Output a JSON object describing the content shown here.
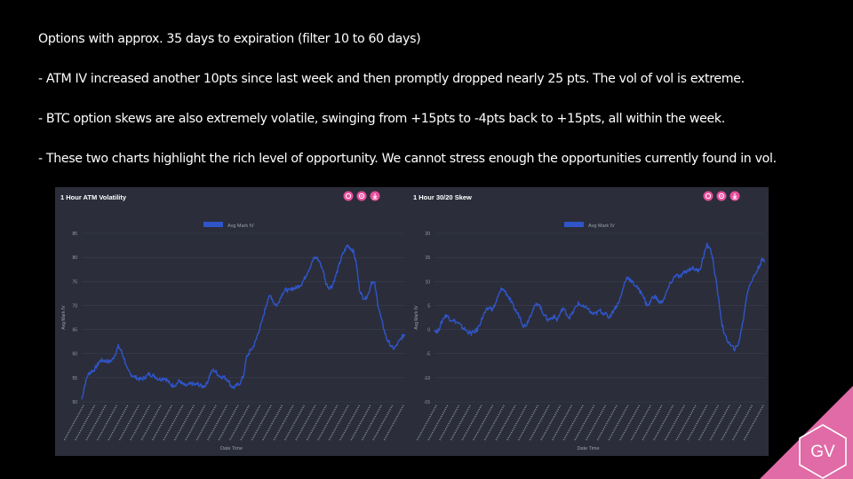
{
  "slide": {
    "bullets": [
      "Options with approx. 35 days to expiration (filter 10 to 60 days)",
      "- ATM IV increased another 10pts since last week and then promptly dropped nearly 25 pts. The vol of vol is extreme.",
      "- BTC option skews are also extremely volatile, swinging from +15pts to -4pts back to +15pts, all within the week.",
      "- These two charts highlight  the rich level of opportunity. We cannot stress enough the opportunities currently found in vol."
    ],
    "logo_text": "GV"
  },
  "colors": {
    "background": "#000000",
    "panel": "#2b2d3a",
    "grid": "#3b3e4c",
    "series": "#2f55c9",
    "button": "#e84d9c",
    "corner": "#e06ba6",
    "text": "#ffffff",
    "axis_text": "#9aa0ad"
  },
  "icons": [
    "zoom-in-icon",
    "zoom-reset-icon",
    "download-icon",
    "gv-logo-icon"
  ],
  "chart_data": [
    {
      "type": "line",
      "title": "1 Hour ATM Volatility",
      "legend": "Avg Mark IV",
      "legend_position": "top",
      "xlabel": "Date Time",
      "ylabel": "Avg Mark IV",
      "ylim": [
        50,
        85
      ],
      "yticks": [
        50,
        55,
        60,
        65,
        70,
        75,
        80,
        85
      ],
      "grid": true,
      "values": [
        50.5,
        53.5,
        55.6,
        56.3,
        56.6,
        57.5,
        58.5,
        58.6,
        58.5,
        58.3,
        58.7,
        60.0,
        61.5,
        60.5,
        58.8,
        56.5,
        55.8,
        55.3,
        55.0,
        54.7,
        54.8,
        55.2,
        55.8,
        55.6,
        55.3,
        54.8,
        54.7,
        55.0,
        54.5,
        53.6,
        53.4,
        53.7,
        54.4,
        53.7,
        53.3,
        53.5,
        53.8,
        53.5,
        53.7,
        53.3,
        53.2,
        53.8,
        55.6,
        56.6,
        56.2,
        55.4,
        55.2,
        55.0,
        54.5,
        53.2,
        53.0,
        53.5,
        54.0,
        55.4,
        59.2,
        60.4,
        61.2,
        62.6,
        64.7,
        66.4,
        69.0,
        71.4,
        72.0,
        70.5,
        70.0,
        71.5,
        72.8,
        73.3,
        73.0,
        73.6,
        73.6,
        74.0,
        74.5,
        75.6,
        77.0,
        78.2,
        79.7,
        80.0,
        79.0,
        77.5,
        74.7,
        73.7,
        74.0,
        75.7,
        77.6,
        79.8,
        81.2,
        82.5,
        82.0,
        81.3,
        78.7,
        73.5,
        71.8,
        71.5,
        72.5,
        75.0,
        74.5,
        70.5,
        67.6,
        65.2,
        63.0,
        62.0,
        61.0,
        61.5,
        62.5,
        63.5,
        64.0
      ]
    },
    {
      "type": "line",
      "title": "1 Hour 30/20 Skew",
      "legend": "Avg Mark IV",
      "legend_position": "top",
      "xlabel": "Date Time",
      "ylabel": "Avg Mark IV",
      "ylim": [
        -15,
        20
      ],
      "yticks": [
        -15,
        -10,
        -5,
        0,
        5,
        10,
        15,
        20
      ],
      "grid": true,
      "values": [
        0.0,
        -0.5,
        1.0,
        2.5,
        3.0,
        2.2,
        2.0,
        1.6,
        1.2,
        0.5,
        0.0,
        -0.5,
        -0.8,
        -0.5,
        0.0,
        1.5,
        3.0,
        4.0,
        4.6,
        4.2,
        5.5,
        7.2,
        8.6,
        8.0,
        7.0,
        5.8,
        4.5,
        3.5,
        2.5,
        0.8,
        1.0,
        2.5,
        4.0,
        5.0,
        5.5,
        4.0,
        3.0,
        2.0,
        2.3,
        2.8,
        2.0,
        3.2,
        4.5,
        3.5,
        2.5,
        3.3,
        4.5,
        5.4,
        5.0,
        4.5,
        4.6,
        3.5,
        3.2,
        3.4,
        4.0,
        3.5,
        3.2,
        2.5,
        3.5,
        4.5,
        5.5,
        7.0,
        9.5,
        11.0,
        10.3,
        9.5,
        9.0,
        8.0,
        7.5,
        5.5,
        5.0,
        6.5,
        7.0,
        6.0,
        5.5,
        6.5,
        8.0,
        9.5,
        10.5,
        11.5,
        10.8,
        11.5,
        12.0,
        12.4,
        12.8,
        12.6,
        12.2,
        13.0,
        15.5,
        17.5,
        17.0,
        14.5,
        10.0,
        5.5,
        1.0,
        -1.5,
        -2.5,
        -3.5,
        -4.0,
        -3.5,
        -1.0,
        2.5,
        7.0,
        9.5,
        10.5,
        11.8,
        13.0,
        14.5,
        14.0
      ]
    }
  ]
}
